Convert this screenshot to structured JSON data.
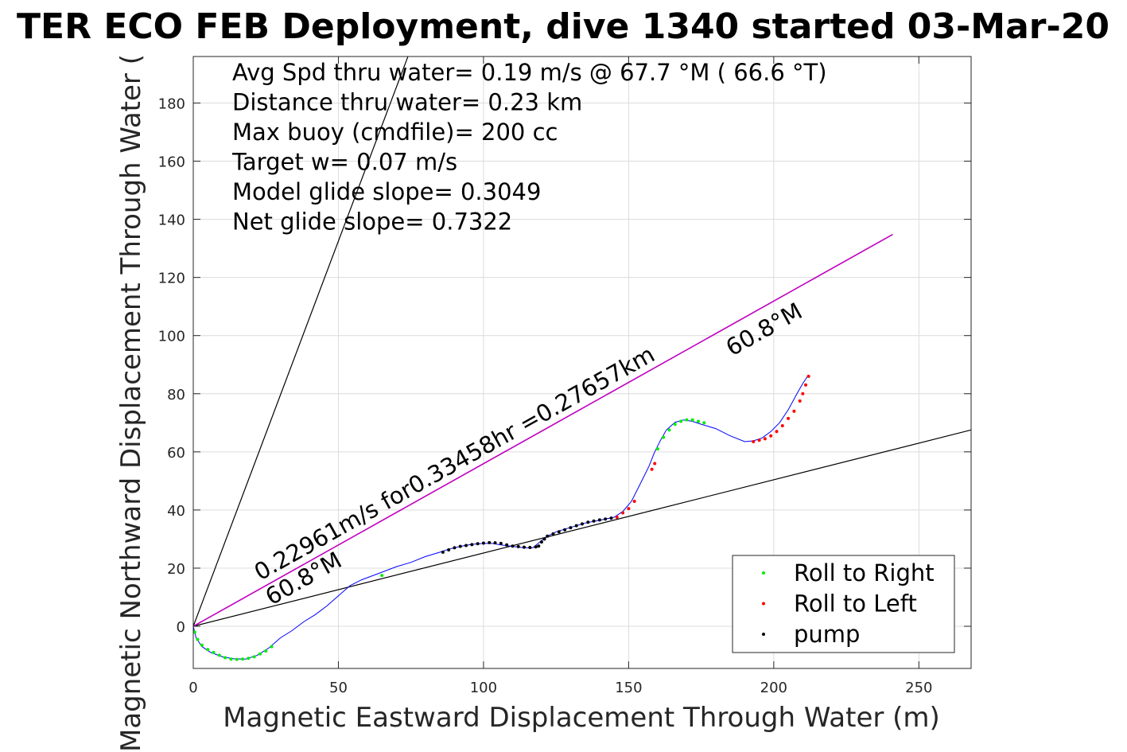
{
  "chart_data": {
    "type": "scatter",
    "title": "TER ECO FEB Deployment, dive 1340 started 03-Mar-20",
    "xlabel": "Magnetic Eastward Displacement Through Water (m)",
    "ylabel": "Magnetic Northward Displacement Through Water (",
    "xlim": [
      0,
      268
    ],
    "ylim": [
      -14.5,
      196
    ],
    "xticks": [
      0,
      50,
      100,
      150,
      200,
      250
    ],
    "yticks": [
      0,
      20,
      40,
      60,
      80,
      100,
      120,
      140,
      160,
      180
    ],
    "grid": true,
    "legend_position": "bottom-right",
    "annotations": [
      "Avg Spd thru water=  0.19 m/s @  67.7 °M ( 66.6 °T)",
      "Distance thru water=  0.23 km",
      "Max buoy (cmdfile)= 200 cc",
      "Target w= 0.07 m/s",
      "Model glide slope= 0.3049",
      "Net glide slope= 0.7322"
    ],
    "slope_label": "0.22961m/s for0.33458hr =0.27657km",
    "heading_label_start": "60.8°M",
    "heading_label_end": "60.8°M",
    "reference_lines": [
      {
        "slope": 2.65,
        "color": "#000000"
      },
      {
        "slope": 0.252,
        "color": "#000000"
      }
    ],
    "heading_line": {
      "x": [
        0,
        241
      ],
      "y": [
        0,
        134.8
      ],
      "color": "#c000c0"
    },
    "track": {
      "color": "#0000ff",
      "x": [
        0,
        1,
        3,
        6,
        10,
        14,
        18,
        22,
        26,
        30,
        34,
        38,
        42,
        46,
        50,
        54,
        58,
        62,
        66,
        70,
        75,
        80,
        85,
        88,
        92,
        96,
        100,
        103,
        106,
        110,
        114,
        117,
        120,
        122,
        125,
        130,
        135,
        140,
        145,
        148,
        151,
        154,
        157,
        159,
        161,
        163,
        166,
        169,
        172,
        175,
        180,
        185,
        190,
        193,
        196,
        199,
        202,
        205,
        208,
        210,
        212
      ],
      "y": [
        0,
        -4,
        -7,
        -9,
        -10.5,
        -11.2,
        -11.3,
        -10,
        -7.5,
        -4,
        -1.5,
        1.5,
        4,
        7,
        10.5,
        14,
        16,
        17.5,
        19,
        20.5,
        22,
        24,
        25.5,
        26.5,
        27.5,
        28.2,
        28.5,
        28.5,
        28,
        27.5,
        27,
        27,
        29.5,
        31,
        32.5,
        34,
        35.5,
        36.5,
        37.5,
        39.5,
        43,
        49,
        55,
        60,
        64,
        67.5,
        70.2,
        71,
        70.5,
        69.5,
        68,
        65.5,
        63.5,
        63.8,
        64.8,
        67,
        70,
        74.5,
        80,
        83.5,
        86.5
      ]
    },
    "legend": [
      {
        "label": "Roll to Right",
        "color": "#00ee00"
      },
      {
        "label": "Roll to Left",
        "color": "#ff0000"
      },
      {
        "label": "pump",
        "color": "#000000"
      }
    ],
    "series": [
      {
        "name": "Roll to Right",
        "color": "#00ee00",
        "x": [
          0.5,
          1.5,
          3,
          5,
          7,
          9,
          11,
          13,
          15,
          17,
          19,
          21,
          23,
          25,
          27,
          65,
          160,
          162,
          164,
          166,
          168,
          170,
          172,
          174,
          176
        ],
        "y": [
          -2,
          -4.5,
          -6.5,
          -8,
          -9,
          -10,
          -10.8,
          -11.3,
          -11.4,
          -11.3,
          -11,
          -10.5,
          -9.5,
          -8.5,
          -7,
          17.5,
          61,
          65,
          67.5,
          69.5,
          70.5,
          71,
          71,
          70.5,
          70
        ]
      },
      {
        "name": "Roll to Left",
        "color": "#ff0000",
        "x": [
          146,
          148,
          150,
          152,
          158,
          159,
          193,
          195,
          197,
          199,
          201,
          203,
          205,
          207,
          209,
          210,
          211,
          212
        ],
        "y": [
          37.5,
          39,
          40.5,
          43,
          54,
          56,
          63.5,
          64,
          64.5,
          65.5,
          67,
          69,
          71.5,
          74,
          77.5,
          80,
          83,
          86
        ]
      },
      {
        "name": "pump",
        "color": "#000000",
        "x": [
          86,
          88,
          90,
          92,
          94,
          96,
          98,
          100,
          102,
          104,
          106,
          108,
          110,
          112,
          114,
          116,
          118,
          119,
          120,
          121,
          122,
          124,
          126,
          128,
          130,
          132,
          134,
          136,
          138,
          140,
          142,
          144
        ],
        "y": [
          25.5,
          26.3,
          27,
          27.5,
          27.8,
          28.1,
          28.4,
          28.6,
          28.8,
          28.7,
          28.5,
          28,
          27.6,
          27.4,
          27.2,
          27.1,
          27.3,
          27.6,
          29,
          30,
          31,
          31.8,
          32.5,
          33.2,
          33.9,
          34.6,
          35.2,
          35.8,
          36.2,
          36.6,
          36.9,
          37.2
        ]
      }
    ]
  }
}
